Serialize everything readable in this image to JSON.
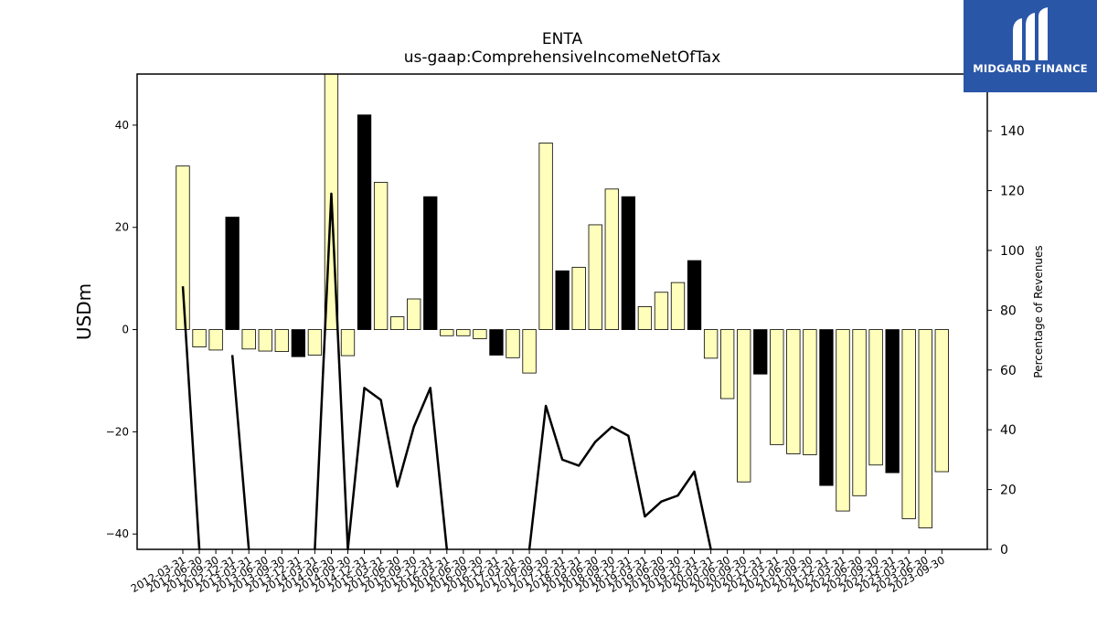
{
  "chart_data": {
    "type": "bar",
    "title": "ENTA",
    "subtitle": "us-gaap:ComprehensiveIncomeNetOfTax",
    "ylabel": "USDm",
    "ylabel_right": "Percentage of Revenues",
    "ylim": [
      -43,
      50
    ],
    "ylim_right": [
      0,
      159
    ],
    "yticks": [
      -40,
      -20,
      0,
      20,
      40
    ],
    "yticks_right": [
      0,
      20,
      40,
      60,
      80,
      100,
      120,
      140
    ],
    "colors": {
      "q4_bar": "#000000",
      "other_bar": "#ffffbb",
      "line": "#000000"
    },
    "categories": [
      "2012-03-31",
      "2012-06-30",
      "2012-09-30",
      "2012-12-31",
      "2013-03-31",
      "2013-06-30",
      "2013-09-30",
      "2013-12-31",
      "2014-03-31",
      "2014-06-30",
      "2014-09-30",
      "2014-12-31",
      "2015-03-31",
      "2015-06-30",
      "2015-09-30",
      "2015-12-31",
      "2016-03-31",
      "2016-06-30",
      "2016-09-30",
      "2016-12-31",
      "2017-03-31",
      "2017-06-30",
      "2017-09-30",
      "2017-12-31",
      "2018-03-31",
      "2018-06-30",
      "2018-09-30",
      "2018-12-31",
      "2019-03-31",
      "2019-06-30",
      "2019-09-30",
      "2019-12-31",
      "2020-03-31",
      "2020-06-30",
      "2020-09-30",
      "2020-12-31",
      "2021-03-31",
      "2021-06-30",
      "2021-09-30",
      "2021-12-31",
      "2022-03-31",
      "2022-06-30",
      "2022-09-30",
      "2022-12-31",
      "2023-03-31",
      "2023-06-30",
      "2023-09-30"
    ],
    "series": [
      {
        "values": [
          32,
          -3.4,
          -4,
          22,
          -3.8,
          -4.2,
          -4.3,
          -5.3,
          -5,
          50,
          -5.1,
          42,
          28.8,
          2.5,
          6,
          26,
          -1.2,
          -1.2,
          -1.8,
          -5,
          -5.5,
          -8.5,
          36.5,
          11.5,
          12.2,
          20.5,
          27.5,
          26,
          4.5,
          7.3,
          9.2,
          13.5,
          -5.6,
          -13.5,
          -29.8,
          -8.7,
          -22.5,
          -24.3,
          -24.5,
          -30.5,
          -35.5,
          -32.5,
          -26.5,
          -28,
          -37,
          -38.8,
          -27.8
        ]
      },
      {
        "values": [
          88,
          0,
          null,
          65,
          0,
          null,
          null,
          null,
          0,
          119,
          0,
          54,
          50,
          21,
          41,
          54,
          0,
          null,
          null,
          null,
          null,
          0,
          48,
          30,
          28,
          36,
          41,
          38,
          11,
          16,
          18,
          26,
          0,
          null,
          null,
          null,
          null,
          null,
          null,
          null,
          null,
          null,
          null,
          null,
          null,
          null,
          null
        ]
      }
    ]
  },
  "logo": {
    "text": "MIDGARD FINANCE"
  }
}
